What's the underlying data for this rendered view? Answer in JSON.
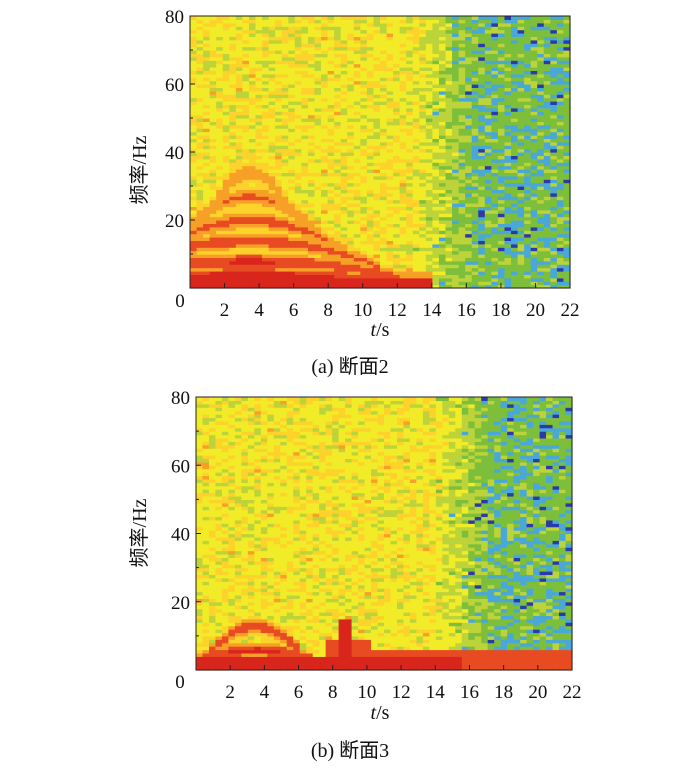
{
  "chart_data": [
    {
      "type": "heatmap",
      "caption": "(a) 断面2",
      "xlabel_italic": "t",
      "xlabel_unit": "/s",
      "ylabel": "频率/Hz",
      "xlim": [
        0,
        22
      ],
      "ylim": [
        0,
        80
      ],
      "x_ticks": [
        "0",
        "2",
        "4",
        "6",
        "8",
        "10",
        "12",
        "14",
        "16",
        "18",
        "20",
        "22"
      ],
      "y_ticks": [
        "80",
        "60",
        "40",
        "20"
      ],
      "colormap": [
        "#2a3aa8",
        "#4aa8d8",
        "#7dbf3a",
        "#bcd43a",
        "#f2ec28",
        "#fdd22a",
        "#f7a027",
        "#e84a22",
        "#d8261c"
      ],
      "features": {
        "harmonic_peaks_hz": [
          4,
          8,
          14,
          20,
          27,
          34
        ],
        "harmonic_peak_time_s": 3.5,
        "harmonic_decay_end_s": [
          13,
          12,
          11,
          9.5,
          8,
          6.5
        ],
        "low_freq_band_hz": 3,
        "low_freq_band_end_s": 14,
        "green_transition_start_s": 13
      }
    },
    {
      "type": "heatmap",
      "caption": "(b) 断面3",
      "xlabel_italic": "t",
      "xlabel_unit": "/s",
      "ylabel": "频率/Hz",
      "xlim": [
        0,
        22
      ],
      "ylim": [
        0,
        80
      ],
      "x_ticks": [
        "0",
        "2",
        "4",
        "6",
        "8",
        "10",
        "12",
        "14",
        "16",
        "18",
        "20",
        "22"
      ],
      "y_ticks": [
        "80",
        "60",
        "40",
        "20"
      ],
      "colormap": [
        "#2a3aa8",
        "#4aa8d8",
        "#7dbf3a",
        "#bcd43a",
        "#f2ec28",
        "#fdd22a",
        "#f7a027",
        "#e84a22",
        "#d8261c"
      ],
      "features": {
        "harmonic_peaks_hz": [
          6,
          13
        ],
        "harmonic_peak_time_s": 3.5,
        "harmonic_decay_end_s": [
          7,
          6
        ],
        "low_freq_band_hz": 4,
        "low_freq_band_end_s": 22,
        "spike_time_s": 8.8,
        "spike_height_hz": 15,
        "green_transition_start_s": 14
      }
    }
  ]
}
